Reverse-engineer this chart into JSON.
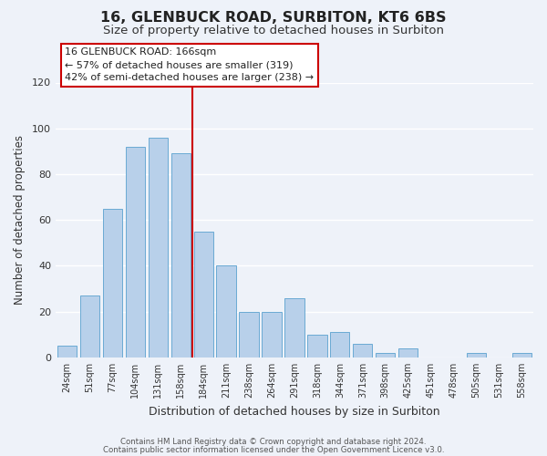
{
  "title": "16, GLENBUCK ROAD, SURBITON, KT6 6BS",
  "subtitle": "Size of property relative to detached houses in Surbiton",
  "xlabel": "Distribution of detached houses by size in Surbiton",
  "ylabel": "Number of detached properties",
  "bar_labels": [
    "24sqm",
    "51sqm",
    "77sqm",
    "104sqm",
    "131sqm",
    "158sqm",
    "184sqm",
    "211sqm",
    "238sqm",
    "264sqm",
    "291sqm",
    "318sqm",
    "344sqm",
    "371sqm",
    "398sqm",
    "425sqm",
    "451sqm",
    "478sqm",
    "505sqm",
    "531sqm",
    "558sqm"
  ],
  "bar_values": [
    5,
    27,
    65,
    92,
    96,
    89,
    55,
    40,
    20,
    20,
    26,
    10,
    11,
    6,
    2,
    4,
    0,
    0,
    2,
    0,
    2
  ],
  "bar_color": "#b8d0ea",
  "bar_edge_color": "#6aaad4",
  "vline_x": 5.5,
  "vline_color": "#cc0000",
  "ylim": [
    0,
    120
  ],
  "yticks": [
    0,
    20,
    40,
    60,
    80,
    100,
    120
  ],
  "annotation_title": "16 GLENBUCK ROAD: 166sqm",
  "annotation_line1": "← 57% of detached houses are smaller (319)",
  "annotation_line2": "42% of semi-detached houses are larger (238) →",
  "footer1": "Contains HM Land Registry data © Crown copyright and database right 2024.",
  "footer2": "Contains public sector information licensed under the Open Government Licence v3.0.",
  "background_color": "#eef2f9",
  "grid_color": "#ffffff",
  "title_fontsize": 11.5,
  "subtitle_fontsize": 9.5
}
